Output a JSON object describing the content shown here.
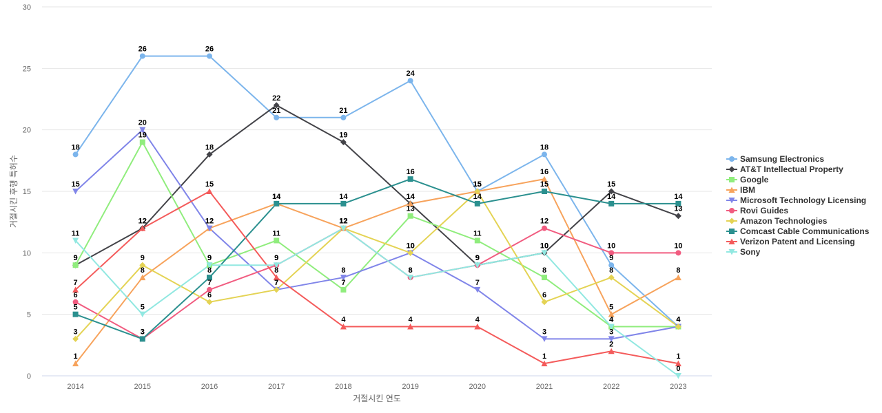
{
  "chart_data": {
    "type": "line",
    "xlabel": "거절시킨 연도",
    "ylabel": "거절시킨 후행 특허수",
    "x": [
      "2014",
      "2015",
      "2016",
      "2017",
      "2018",
      "2019",
      "2020",
      "2021",
      "2022",
      "2023"
    ],
    "ylim": [
      0,
      30
    ],
    "yticks": [
      0,
      5,
      10,
      15,
      20,
      25,
      30
    ],
    "grid": true,
    "legend_position": "right",
    "series": [
      {
        "name": "Samsung Electronics",
        "color": "#7cb5ec",
        "marker": "circle",
        "values": [
          18,
          26,
          26,
          21,
          21,
          24,
          15,
          18,
          9,
          4
        ]
      },
      {
        "name": "AT&T Intellectual Property",
        "color": "#434348",
        "marker": "diamond",
        "values": [
          9,
          12,
          18,
          22,
          19,
          14,
          9,
          10,
          15,
          13
        ]
      },
      {
        "name": "Google",
        "color": "#90ed7d",
        "marker": "square",
        "values": [
          9,
          19,
          9,
          11,
          7,
          13,
          11,
          8,
          4,
          4
        ]
      },
      {
        "name": "IBM",
        "color": "#f7a35c",
        "marker": "triangle",
        "values": [
          1,
          8,
          12,
          14,
          12,
          14,
          15,
          16,
          5,
          8
        ]
      },
      {
        "name": "Microsoft Technology Licensing",
        "color": "#8085e9",
        "marker": "triangle-down",
        "values": [
          15,
          20,
          12,
          7,
          8,
          10,
          7,
          3,
          3,
          4
        ]
      },
      {
        "name": "Rovi Guides",
        "color": "#f15c80",
        "marker": "circle",
        "values": [
          6,
          3,
          7,
          9,
          12,
          8,
          9,
          12,
          10,
          10
        ]
      },
      {
        "name": "Amazon Technologies",
        "color": "#e4d354",
        "marker": "diamond",
        "values": [
          3,
          9,
          6,
          7,
          12,
          10,
          15,
          6,
          8,
          4
        ]
      },
      {
        "name": "Comcast Cable Communications",
        "color": "#2b908f",
        "marker": "square",
        "values": [
          5,
          3,
          8,
          14,
          14,
          16,
          14,
          15,
          14,
          14
        ]
      },
      {
        "name": "Verizon Patent and Licensing",
        "color": "#f45b5b",
        "marker": "triangle",
        "values": [
          7,
          12,
          15,
          8,
          4,
          4,
          4,
          1,
          2,
          1
        ]
      },
      {
        "name": "Sony",
        "color": "#91e8e1",
        "marker": "triangle-down",
        "values": [
          11,
          5,
          9,
          9,
          12,
          8,
          9,
          10,
          4,
          0
        ]
      }
    ]
  }
}
